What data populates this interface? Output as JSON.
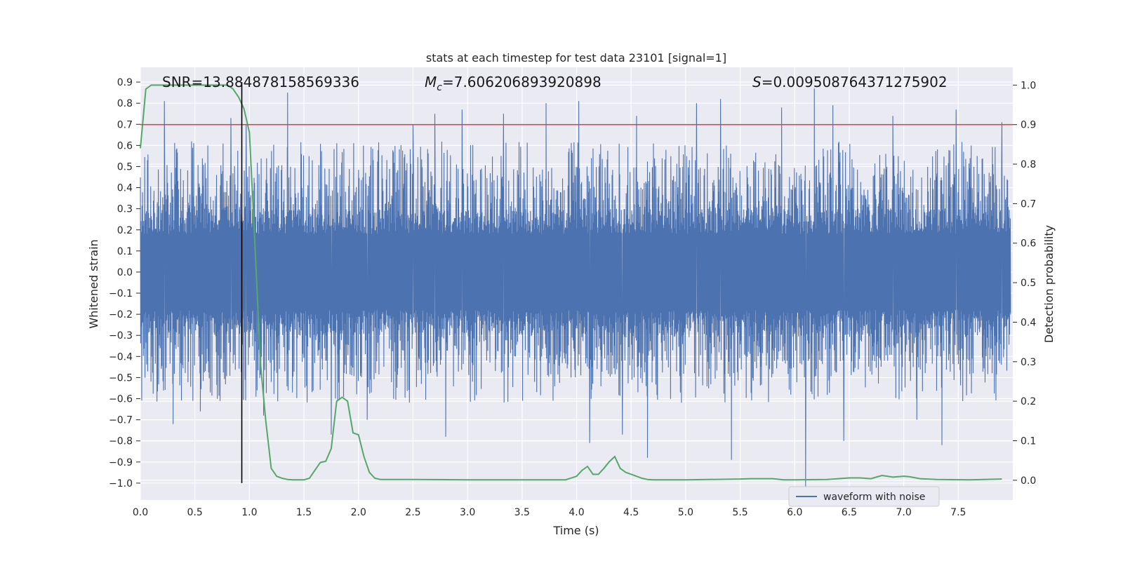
{
  "chart_data": {
    "type": "line",
    "title": "stats at each timestep for test data 23101 [signal=1]",
    "xlabel": "Time (s)",
    "ylabel_left": "Whitened strain",
    "ylabel_right": "Detection probability",
    "xlim": [
      0.0,
      8.0
    ],
    "ylim_left": [
      -1.08,
      0.97
    ],
    "ylim_right": [
      -0.05,
      1.045
    ],
    "x_ticks": [
      "0.0",
      "0.5",
      "1.0",
      "1.5",
      "2.0",
      "2.5",
      "3.0",
      "3.5",
      "4.0",
      "4.5",
      "5.0",
      "5.5",
      "6.0",
      "6.5",
      "7.0",
      "7.5"
    ],
    "y_left_ticks": [
      "0.9",
      "0.8",
      "0.7",
      "0.6",
      "0.5",
      "0.4",
      "0.3",
      "0.2",
      "0.1",
      "0.0",
      "−0.1",
      "−0.2",
      "−0.3",
      "−0.4",
      "−0.5",
      "−0.6",
      "−0.7",
      "−0.8",
      "−0.9",
      "−1.0"
    ],
    "y_right_ticks": [
      "1.0",
      "0.9",
      "0.8",
      "0.7",
      "0.6",
      "0.5",
      "0.4",
      "0.3",
      "0.2",
      "0.1",
      "0.0"
    ],
    "grid": true,
    "legend_position": "bottom-right",
    "annotations": {
      "snr": "SNR=13.884878158569336",
      "mc_symbol": "M",
      "mc_sub": "c",
      "mc_value": "=7.606206893920898",
      "s_symbol": "S",
      "s_value": "=0.009508764371275902"
    },
    "threshold": {
      "value": 0.9,
      "axis": "right",
      "color": "#c44e52"
    },
    "event_marker": {
      "x": 0.93,
      "y_from": -1.0,
      "y_to": 0.9,
      "color": "#000000"
    },
    "series": [
      {
        "name": "waveform with noise",
        "color": "#4c72b0",
        "axis": "left",
        "band_core": 0.3,
        "band_typical": 0.5,
        "spikes": [
          [
            0.22,
            0.81
          ],
          [
            0.3,
            -0.72
          ],
          [
            0.55,
            -0.66
          ],
          [
            0.83,
            0.73
          ],
          [
            0.97,
            0.7
          ],
          [
            1.13,
            -0.68
          ],
          [
            1.35,
            0.85
          ],
          [
            1.75,
            -0.77
          ],
          [
            2.08,
            -0.7
          ],
          [
            2.5,
            0.7
          ],
          [
            2.7,
            0.75
          ],
          [
            2.8,
            -0.78
          ],
          [
            2.95,
            0.77
          ],
          [
            3.33,
            0.75
          ],
          [
            3.72,
            0.8
          ],
          [
            4.02,
            0.81
          ],
          [
            4.12,
            -0.81
          ],
          [
            4.42,
            -0.77
          ],
          [
            4.55,
            0.74
          ],
          [
            4.65,
            -0.88
          ],
          [
            5.1,
            0.8
          ],
          [
            5.32,
            0.82
          ],
          [
            5.42,
            -0.89
          ],
          [
            5.88,
            0.78
          ],
          [
            6.1,
            -1.02
          ],
          [
            6.18,
            0.87
          ],
          [
            6.35,
            0.79
          ],
          [
            6.45,
            -0.8
          ],
          [
            6.9,
            0.74
          ],
          [
            7.12,
            -0.7
          ],
          [
            7.35,
            -0.82
          ],
          [
            7.48,
            0.77
          ],
          [
            7.9,
            0.71
          ]
        ]
      },
      {
        "name": "",
        "color": "#55a868",
        "axis": "right",
        "x": [
          0.0,
          0.05,
          0.1,
          0.15,
          0.8,
          0.85,
          0.9,
          0.95,
          1.0,
          1.05,
          1.1,
          1.15,
          1.2,
          1.25,
          1.3,
          1.35,
          1.4,
          1.45,
          1.5,
          1.55,
          1.6,
          1.65,
          1.7,
          1.75,
          1.8,
          1.85,
          1.9,
          1.95,
          2.0,
          2.05,
          2.1,
          2.15,
          2.2,
          2.25,
          2.3,
          2.5,
          3.0,
          3.5,
          3.9,
          4.0,
          4.05,
          4.1,
          4.15,
          4.2,
          4.25,
          4.3,
          4.35,
          4.4,
          4.45,
          4.5,
          4.55,
          4.6,
          4.65,
          4.7,
          5.0,
          5.5,
          5.6,
          5.8,
          5.9,
          6.0,
          6.3,
          6.5,
          6.6,
          6.7,
          6.8,
          6.9,
          7.0,
          7.05,
          7.15,
          7.3,
          7.6,
          7.9
        ],
        "values": [
          0.84,
          0.99,
          1.0,
          1.0,
          1.0,
          0.99,
          0.97,
          0.94,
          0.88,
          0.6,
          0.3,
          0.15,
          0.03,
          0.01,
          0.005,
          0.002,
          0.001,
          0.001,
          0.001,
          0.005,
          0.025,
          0.045,
          0.048,
          0.08,
          0.2,
          0.21,
          0.2,
          0.12,
          0.115,
          0.06,
          0.02,
          0.005,
          0.002,
          0.002,
          0.002,
          0.002,
          0.001,
          0.001,
          0.001,
          0.01,
          0.025,
          0.035,
          0.015,
          0.015,
          0.03,
          0.047,
          0.06,
          0.03,
          0.02,
          0.015,
          0.01,
          0.005,
          0.002,
          0.001,
          0.001,
          0.003,
          0.004,
          0.004,
          0.001,
          0.001,
          0.002,
          0.006,
          0.006,
          0.004,
          0.012,
          0.008,
          0.01,
          0.009,
          0.004,
          0.002,
          0.001,
          0.003
        ]
      }
    ]
  }
}
